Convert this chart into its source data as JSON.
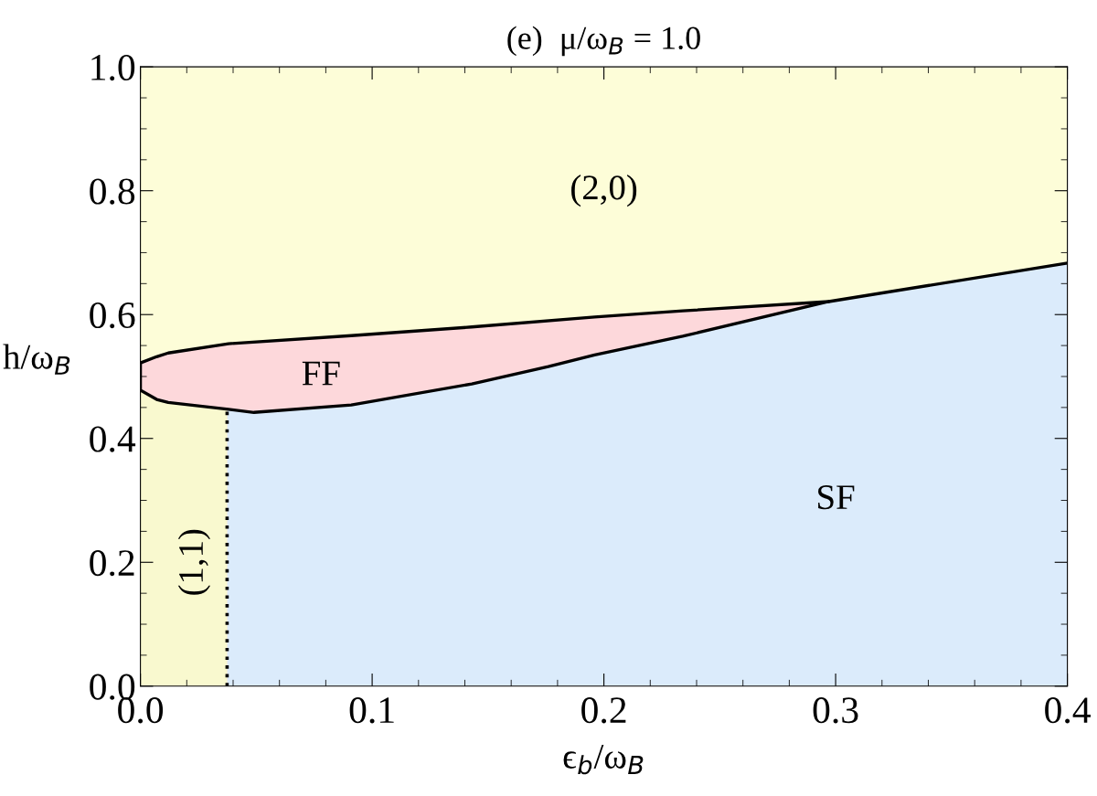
{
  "chart_data": {
    "type": "line",
    "title": "(e)  μ/ω$_{B}$ = 1.0",
    "xlabel": "ϵ$_{b}$/ω$_{B}$",
    "ylabel": "h/ω$_{B}$",
    "xlim": [
      0,
      0.4
    ],
    "ylim": [
      0,
      1
    ],
    "xticks": [
      {
        "value": 0,
        "label": "0.0"
      },
      0.1,
      0.2,
      0.3,
      0.4
    ],
    "yticks": [
      {
        "value": 0,
        "label": "0.0"
      },
      0.2,
      0.4,
      0.6,
      0.8,
      {
        "value": 1,
        "label": "1.0"
      }
    ],
    "grid": false,
    "legend": false,
    "series": [
      {
        "type": "area",
        "color": "#fdfdd8",
        "x": [
          0,
          0.4
        ],
        "values": [
          1,
          1
        ]
      },
      {
        "type": "area",
        "color": "#fdd8db",
        "x": [
          0,
          0.007,
          0.012,
          0.038,
          0.091,
          0.143,
          0.196,
          0.234,
          0.297
        ],
        "values": [
          0.522,
          0.532,
          0.538,
          0.553,
          0.566,
          0.58,
          0.596,
          0.606,
          0.621
        ]
      },
      {
        "type": "area",
        "color": "#dbebfb",
        "x": [
          0.0374,
          0.049,
          0.091,
          0.143,
          0.176,
          0.196,
          0.234,
          0.297,
          0.4
        ],
        "values": [
          0.447,
          0.442,
          0.454,
          0.488,
          0.516,
          0.535,
          0.565,
          0.621,
          0.683
        ]
      },
      {
        "type": "area",
        "color": "#f9f9cf",
        "x": [
          0,
          0.007,
          0.012,
          0.0374
        ],
        "values": [
          0.478,
          0.463,
          0.458,
          0.447
        ]
      },
      {
        "color": "#000000",
        "line_style": "solid",
        "x": [
          0,
          0,
          0.007,
          0.012,
          0.038,
          0.049,
          0.091,
          0.143,
          0.176,
          0.196,
          0.234,
          0.297
        ],
        "values": [
          0.522,
          0.478,
          0.463,
          0.458,
          0.447,
          0.442,
          0.454,
          0.488,
          0.516,
          0.535,
          0.565,
          0.621
        ]
      },
      {
        "color": "#000000",
        "line_style": "solid",
        "x": [
          0,
          0.007,
          0.012,
          0.038,
          0.091,
          0.143,
          0.196,
          0.234,
          0.297,
          0.4
        ],
        "values": [
          0.522,
          0.532,
          0.538,
          0.553,
          0.566,
          0.58,
          0.596,
          0.606,
          0.621,
          0.683
        ]
      },
      {
        "color": "#000000",
        "line_style": "dotted",
        "x": [
          0.0374,
          0.0374
        ],
        "values": [
          0,
          0.447
        ]
      }
    ],
    "annotations": [
      "(2,0)",
      "FF",
      "SF",
      "(1,1)"
    ]
  }
}
